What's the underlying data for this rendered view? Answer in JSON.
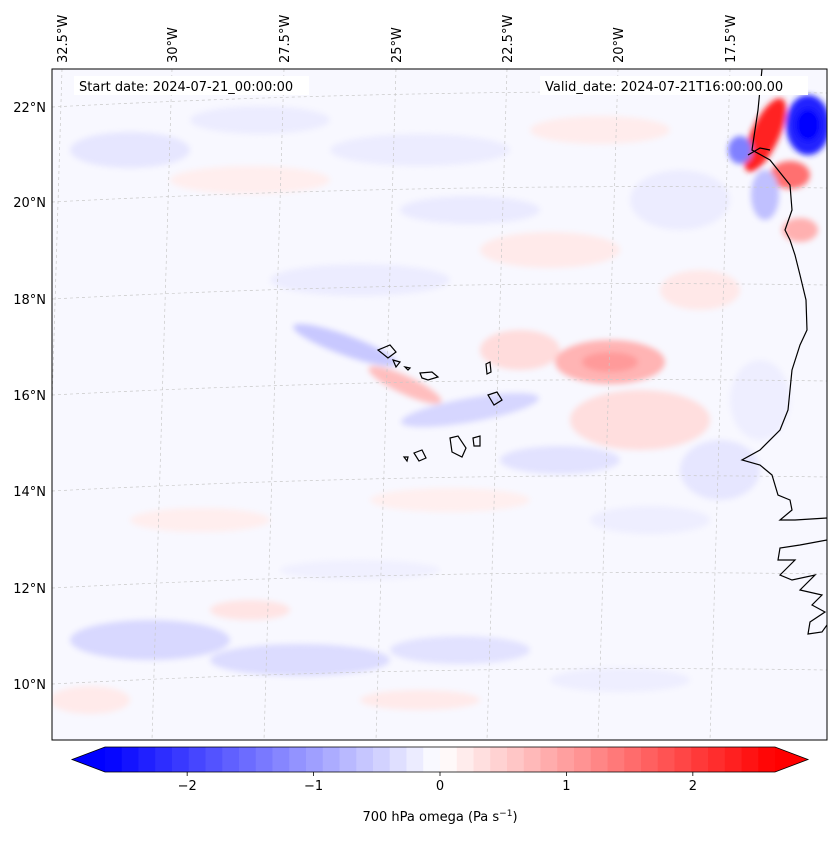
{
  "map": {
    "start_date_label": "Start date: 2024-07-21_00:00:00",
    "valid_date_label": "Valid_date: 2024-07-21T16:00:00.00",
    "lon_labels": [
      "32.5°W",
      "30°W",
      "27.5°W",
      "25°W",
      "22.5°W",
      "20°W",
      "17.5°W"
    ],
    "lat_labels": [
      "22°N",
      "20°N",
      "18°N",
      "16°N",
      "14°N",
      "12°N",
      "10°N"
    ],
    "colorbar": {
      "min": -2.65,
      "max": 2.65,
      "ticks": [
        "−2",
        "−1",
        "0",
        "1",
        "2"
      ],
      "label_main": "700 hPa omega (Pa s",
      "label_exp": "−1",
      "label_tail": ")",
      "colors": {
        "negative": "#0000ff",
        "neutral": "#ffffff",
        "positive": "#ff0000"
      }
    },
    "colors": {
      "coast": "#000000",
      "grid": "#c8c8c8",
      "background": "#f7f7ff"
    }
  }
}
